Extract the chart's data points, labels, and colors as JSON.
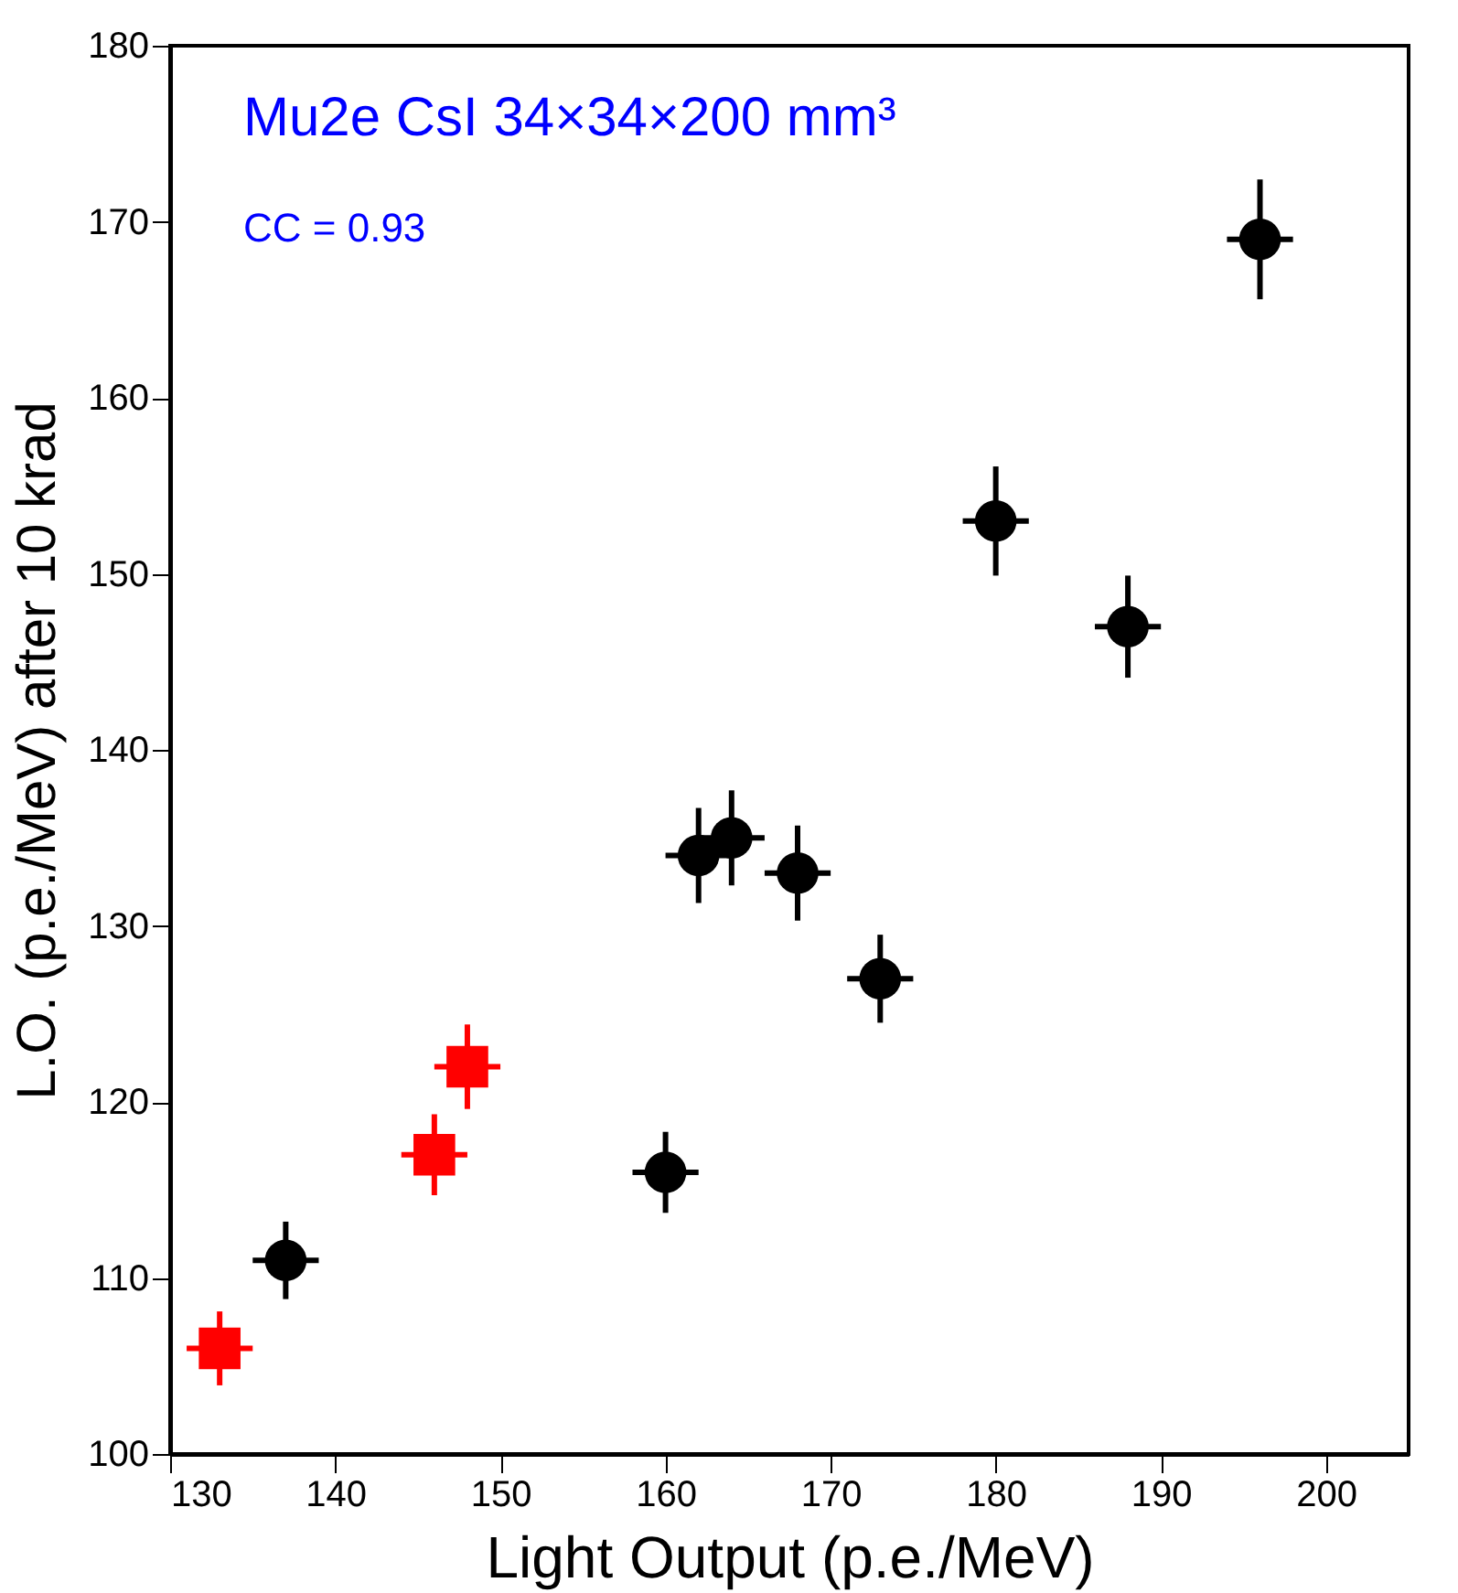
{
  "chart_data": {
    "type": "scatter",
    "title": "Mu2e CsI 34×34×200  mm³",
    "annotations": [
      "CC = 0.93"
    ],
    "xlabel": "Light Output (p.e./MeV)",
    "ylabel": "L.O. (p.e./MeV) after 10 krad",
    "xlim": [
      130,
      205
    ],
    "xticks": [
      130,
      140,
      150,
      160,
      170,
      180,
      190,
      200
    ],
    "ylim": [
      100,
      180
    ],
    "yticks": [
      100,
      110,
      120,
      130,
      140,
      150,
      160,
      170,
      180
    ],
    "grid": false,
    "series": [
      {
        "color": "#000000",
        "marker": "circle",
        "x": [
          137,
          160,
          162,
          164,
          168,
          173,
          180,
          188,
          196
        ],
        "values": [
          111,
          116,
          134,
          135,
          133,
          127,
          153,
          147,
          169
        ],
        "errors": [
          2.2,
          2.3,
          2.7,
          2.7,
          2.7,
          2.5,
          3.1,
          2.9,
          3.4
        ],
        "xerrors": [
          2,
          2,
          2,
          2,
          2,
          2,
          2,
          2,
          2
        ]
      },
      {
        "color": "#ff0000",
        "marker": "square",
        "x": [
          133,
          146,
          148
        ],
        "values": [
          106,
          117,
          122
        ],
        "errors": [
          2.1,
          2.3,
          2.4
        ],
        "xerrors": [
          2,
          2,
          2
        ]
      }
    ]
  }
}
